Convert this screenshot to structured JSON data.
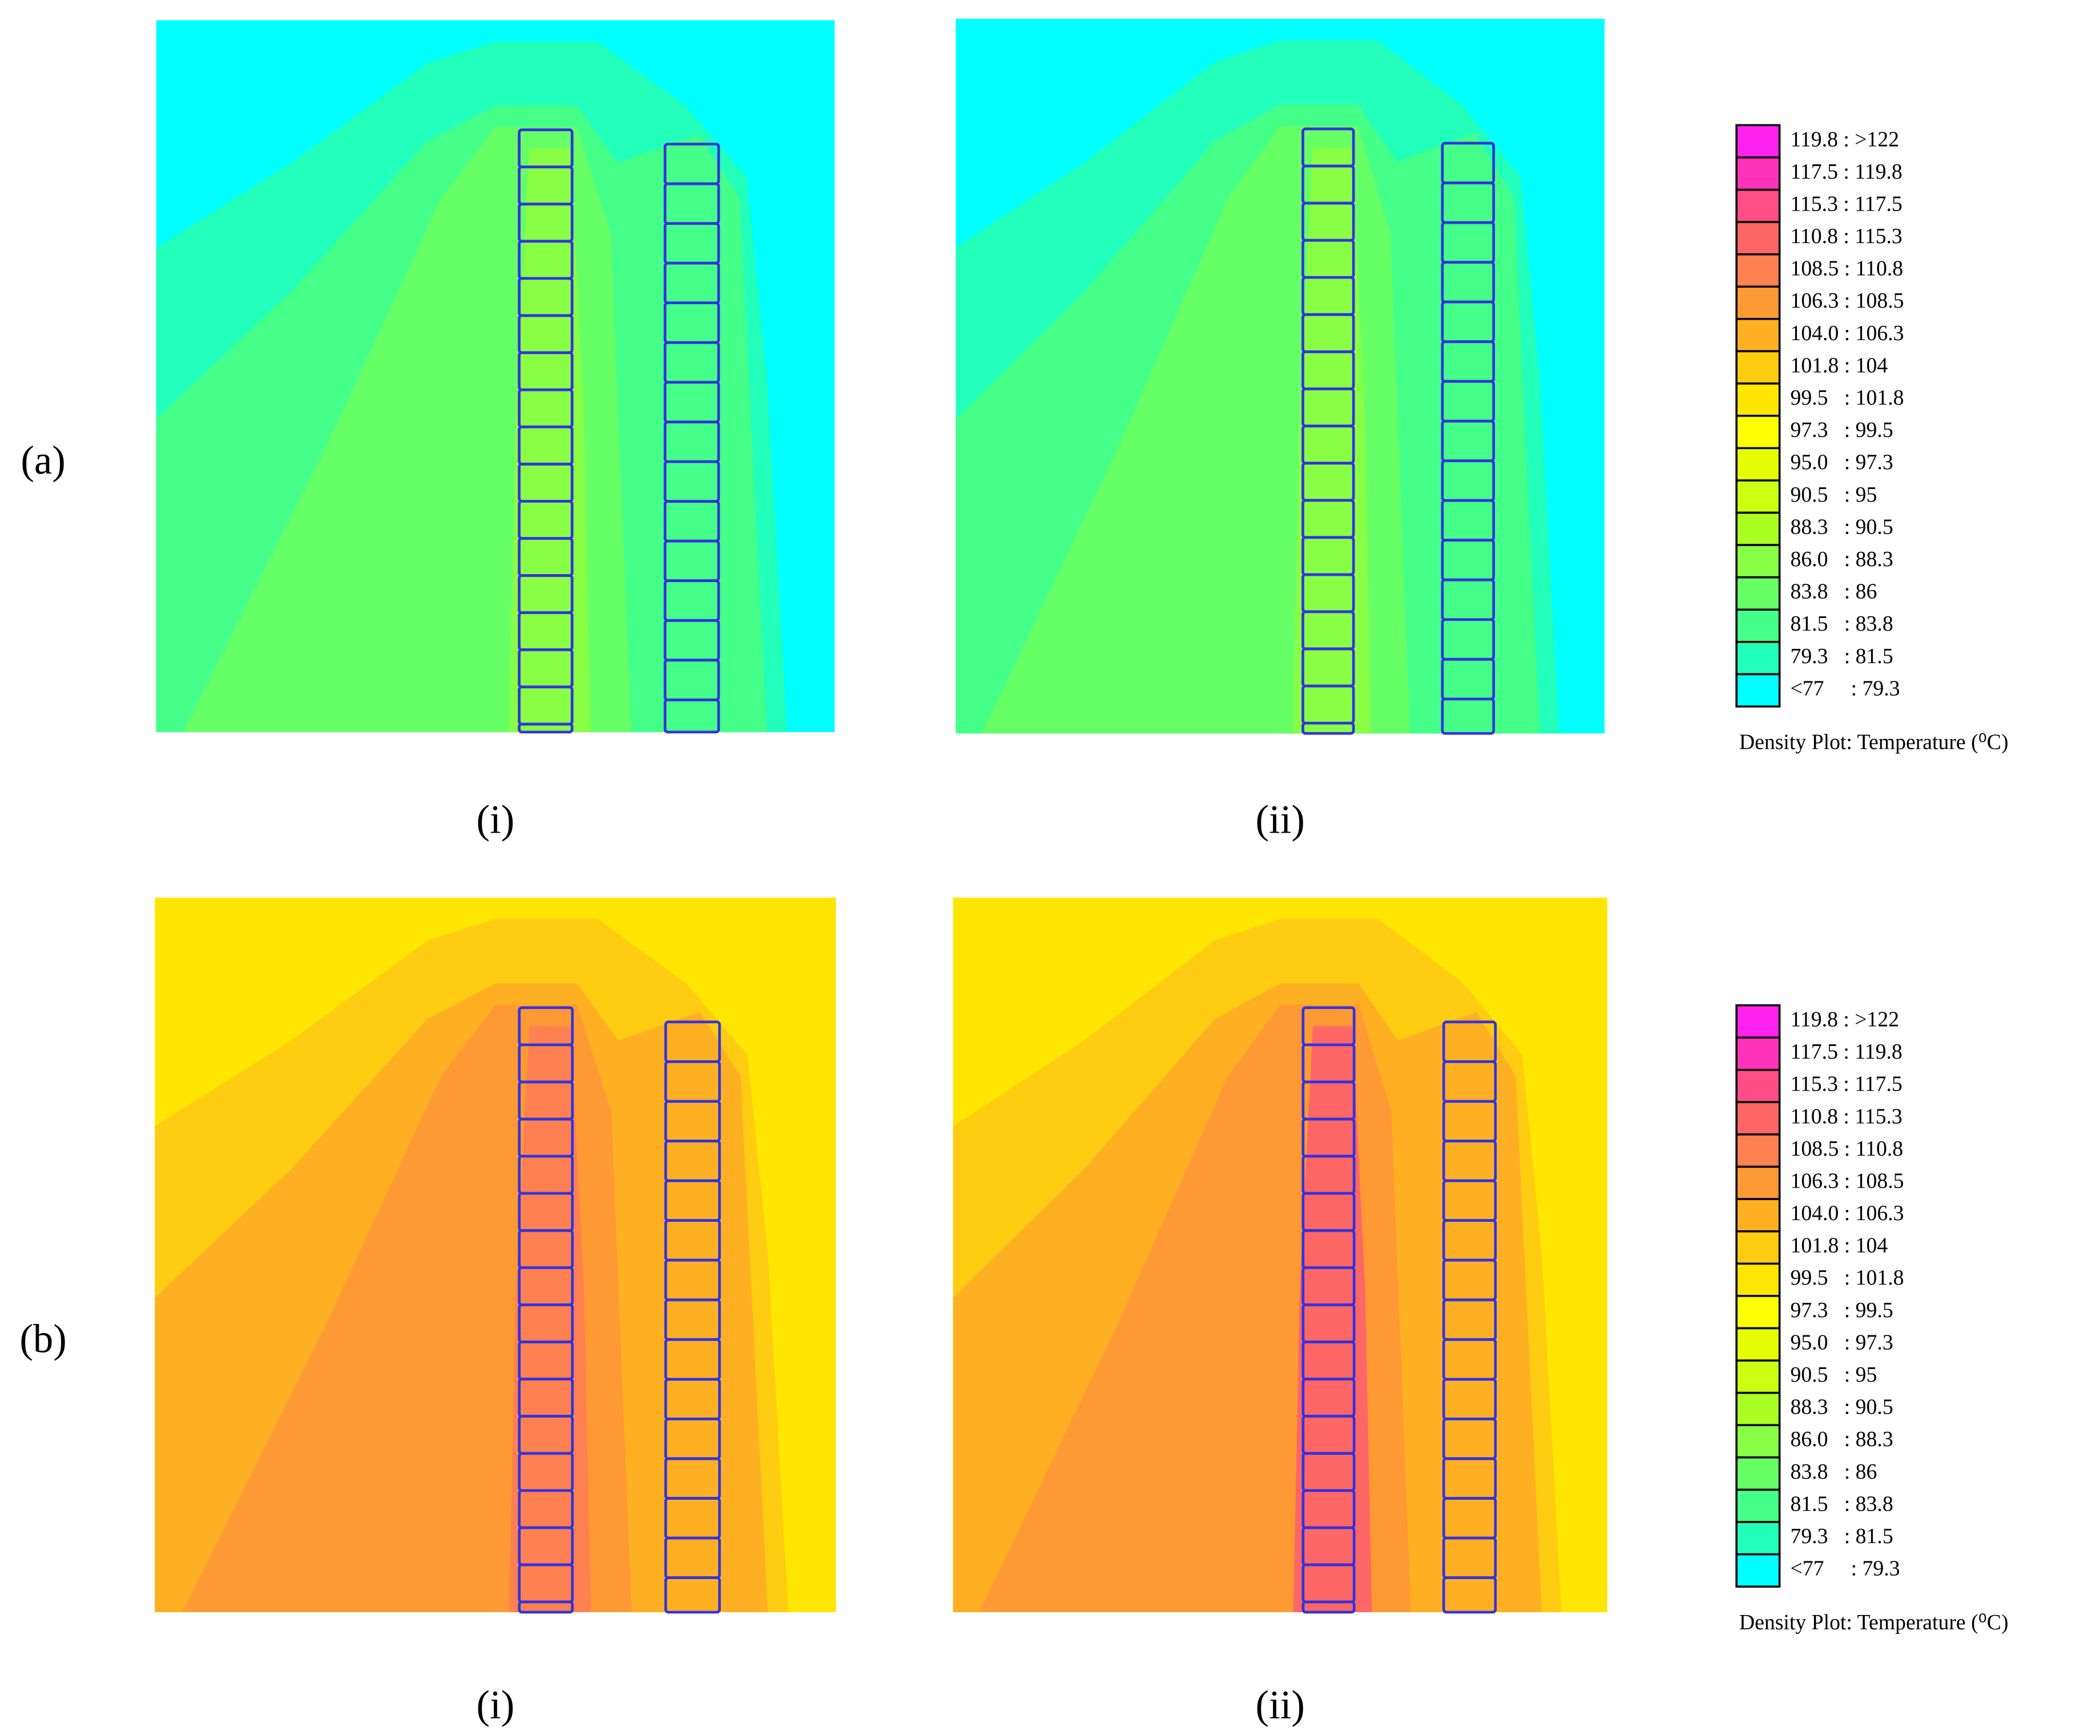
{
  "rows": [
    {
      "label": "(a)",
      "panels": [
        {
          "label": "(i)"
        },
        {
          "label": "(ii)"
        }
      ],
      "legend": {
        "title": "Density Plot: Temperature (⁰C)",
        "entries": [
          {
            "label": "119.8 : >122",
            "color": "#ff22ee"
          },
          {
            "label": "117.5 : 119.8",
            "color": "#ff33bb"
          },
          {
            "label": "115.3 : 117.5",
            "color": "#ff4d88"
          },
          {
            "label": "110.8 : 115.3",
            "color": "#ff6666"
          },
          {
            "label": "108.5 : 110.8",
            "color": "#ff8050"
          },
          {
            "label": "106.3 : 108.5",
            "color": "#ff9933"
          },
          {
            "label": "104.0 : 106.3",
            "color": "#ffb022"
          },
          {
            "label": "101.8 : 104",
            "color": "#ffcc11"
          },
          {
            "label": "99.5   : 101.8",
            "color": "#ffe600"
          },
          {
            "label": "97.3   : 99.5",
            "color": "#ffff00"
          },
          {
            "label": "95.0   : 97.3",
            "color": "#e6ff00"
          },
          {
            "label": "90.5   : 95",
            "color": "#ccff11"
          },
          {
            "label": "88.3   : 90.5",
            "color": "#aaff22"
          },
          {
            "label": "86.0   : 88.3",
            "color": "#88ff44"
          },
          {
            "label": "83.8   : 86",
            "color": "#66ff66"
          },
          {
            "label": "81.5   : 83.8",
            "color": "#44ff88"
          },
          {
            "label": "79.3   : 81.5",
            "color": "#22ffbb"
          },
          {
            "label": "<77     : 79.3",
            "color": "#00ffff"
          }
        ]
      }
    },
    {
      "label": "(b)",
      "panels": [
        {
          "label": "(i)"
        },
        {
          "label": "(ii)"
        }
      ],
      "legend": {
        "title": "Density Plot: Temperature (⁰C)",
        "entries": [
          {
            "label": "119.8 : >122",
            "color": "#ff22ee"
          },
          {
            "label": "117.5 : 119.8",
            "color": "#ff33bb"
          },
          {
            "label": "115.3 : 117.5",
            "color": "#ff4d88"
          },
          {
            "label": "110.8 : 115.3",
            "color": "#ff6666"
          },
          {
            "label": "108.5 : 110.8",
            "color": "#ff8050"
          },
          {
            "label": "106.3 : 108.5",
            "color": "#ff9933"
          },
          {
            "label": "104.0 : 106.3",
            "color": "#ffb022"
          },
          {
            "label": "101.8 : 104",
            "color": "#ffcc11"
          },
          {
            "label": "99.5   : 101.8",
            "color": "#ffe600"
          },
          {
            "label": "97.3   : 99.5",
            "color": "#ffff00"
          },
          {
            "label": "95.0   : 97.3",
            "color": "#e6ff00"
          },
          {
            "label": "90.5   : 95",
            "color": "#ccff11"
          },
          {
            "label": "88.3   : 90.5",
            "color": "#aaff22"
          },
          {
            "label": "86.0   : 88.3",
            "color": "#88ff44"
          },
          {
            "label": "83.8   : 86",
            "color": "#66ff66"
          },
          {
            "label": "81.5   : 83.8",
            "color": "#44ff88"
          },
          {
            "label": "79.3   : 81.5",
            "color": "#22ffbb"
          },
          {
            "label": "<77     : 79.3",
            "color": "#00ffff"
          }
        ]
      }
    }
  ]
}
